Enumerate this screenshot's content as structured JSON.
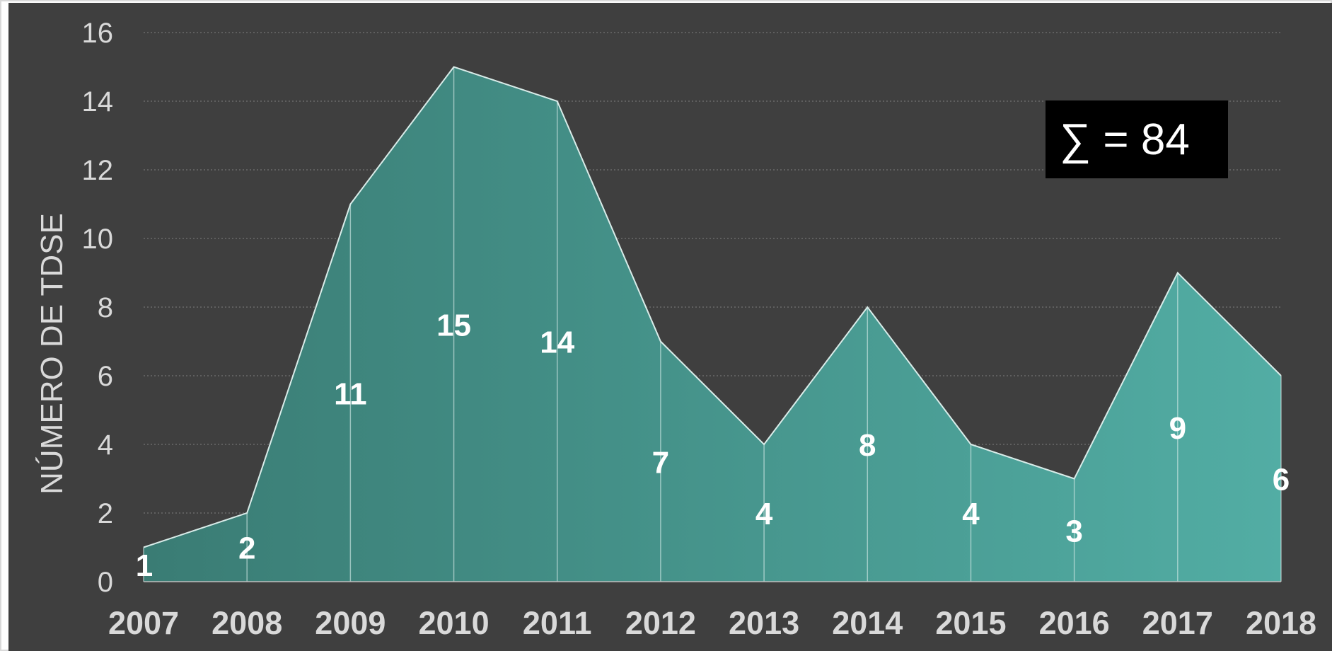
{
  "chart_data": {
    "type": "area",
    "title": "",
    "xlabel": "",
    "ylabel": "NÚMERO DE TDSE",
    "x": [
      "2007",
      "2008",
      "2009",
      "2010",
      "2011",
      "2012",
      "2013",
      "2014",
      "2015",
      "2016",
      "2017",
      "2018"
    ],
    "series": [
      {
        "values": [
          1,
          2,
          11,
          15,
          14,
          7,
          4,
          8,
          4,
          3,
          9,
          6
        ]
      }
    ],
    "ylim": [
      0,
      16
    ],
    "yticks": [
      0,
      2,
      4,
      6,
      8,
      10,
      12,
      14,
      16
    ],
    "grid": true,
    "data_labels": [
      "1",
      "2",
      "11",
      "15",
      "14",
      "7",
      "4",
      "8",
      "4",
      "3",
      "9",
      "6"
    ],
    "annotation": "∑ = 84",
    "colors": {
      "background": "#3f3f3f",
      "fill_start": "#3a7c74",
      "fill_end": "#52ada4",
      "stroke": "#d9ece9",
      "text": "#d9d9d9"
    }
  }
}
